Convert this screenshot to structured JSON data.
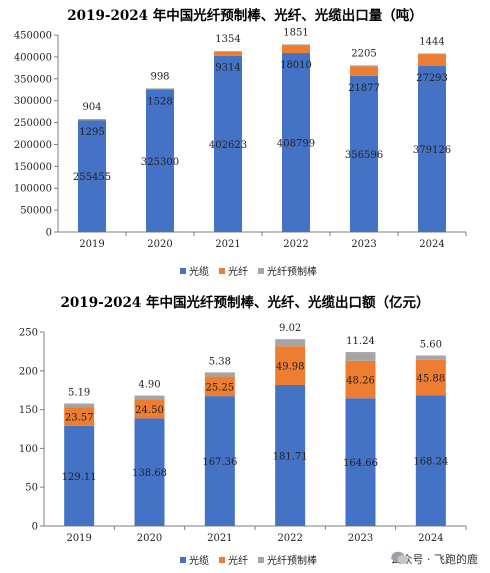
{
  "chart_data": [
    {
      "type": "bar",
      "stacked": true,
      "title": "2019-2024 年中国光纤预制棒、光纤、光缆出口量（吨）",
      "categories": [
        "2019",
        "2020",
        "2021",
        "2022",
        "2023",
        "2024"
      ],
      "series": [
        {
          "name": "光缆",
          "values": [
            255455,
            325300,
            402623,
            408799,
            356596,
            379126
          ],
          "labels": [
            "255455",
            "325300",
            "402623",
            "408799",
            "356596",
            "379126"
          ]
        },
        {
          "name": "光纤",
          "values": [
            1295,
            1528,
            9314,
            18010,
            21877,
            27293
          ],
          "labels": [
            "1295",
            "1528",
            "9314",
            "18010",
            "21877",
            "27293"
          ]
        },
        {
          "name": "光纤预制棒",
          "values": [
            904,
            998,
            1354,
            1851,
            2205,
            1444
          ],
          "labels": [
            "904",
            "998",
            "1354",
            "1851",
            "2205",
            "1444"
          ]
        }
      ],
      "ylim": [
        0,
        450000
      ],
      "yticks": [
        "0",
        "50000",
        "100000",
        "150000",
        "200000",
        "250000",
        "300000",
        "350000",
        "400000",
        "450000"
      ],
      "legend_position": "bottom",
      "grid": false
    },
    {
      "type": "bar",
      "stacked": true,
      "title": "2019-2024 年中国光纤预制棒、光纤、光缆出口额（亿元）",
      "categories": [
        "2019",
        "2020",
        "2021",
        "2022",
        "2023",
        "2024"
      ],
      "series": [
        {
          "name": "光缆",
          "values": [
            129.11,
            138.68,
            167.36,
            181.71,
            164.66,
            168.24
          ],
          "labels": [
            "129.11",
            "138.68",
            "167.36",
            "181.71",
            "164.66",
            "168.24"
          ]
        },
        {
          "name": "光纤",
          "values": [
            23.57,
            24.5,
            25.25,
            49.98,
            48.26,
            45.88
          ],
          "labels": [
            "23.57",
            "24.50",
            "25.25",
            "49.98",
            "48.26",
            "45.88"
          ]
        },
        {
          "name": "光纤预制棒",
          "values": [
            5.19,
            4.9,
            5.38,
            9.02,
            11.24,
            5.6
          ],
          "labels": [
            "5.19",
            "4.90",
            "5.38",
            "9.02",
            "11.24",
            "5.60"
          ]
        }
      ],
      "ylim": [
        0,
        250
      ],
      "yticks": [
        "0",
        "50",
        "100",
        "150",
        "200",
        "250"
      ],
      "legend_position": "bottom",
      "grid": false
    }
  ],
  "colors": {
    "光缆": "#4472C4",
    "光纤": "#ED7D31",
    "光纤预制棒": "#A5A5A5"
  },
  "watermark": {
    "text": "公众号 · 飞跑的鹿"
  }
}
